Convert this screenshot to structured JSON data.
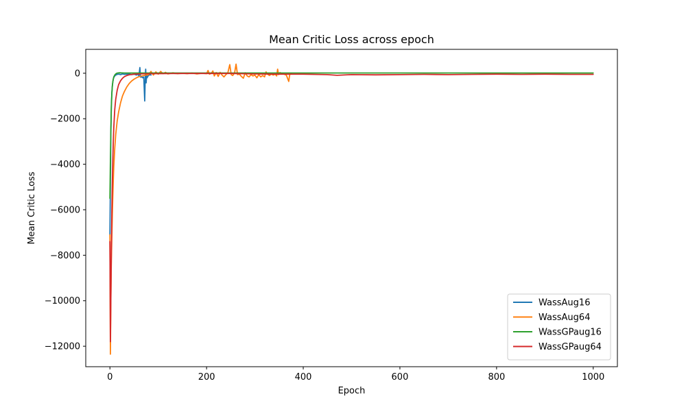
{
  "chart_data": {
    "type": "line",
    "title": "Mean Critic Loss across epoch",
    "xlabel": "Epoch",
    "ylabel": "Mean Critic Loss",
    "xlim": [
      -50,
      1050
    ],
    "ylim": [
      -12900,
      1050
    ],
    "xticks": [
      0,
      200,
      400,
      600,
      800,
      1000
    ],
    "xtick_labels": [
      "0",
      "200",
      "400",
      "600",
      "800",
      "1000"
    ],
    "yticks": [
      0,
      -2000,
      -4000,
      -6000,
      -8000,
      -10000,
      -12000
    ],
    "ytick_labels": [
      "0",
      "−2000",
      "−4000",
      "−6000",
      "−8000",
      "−10000",
      "−12000"
    ],
    "grid": false,
    "legend_position": "lower-right",
    "series": [
      {
        "name": "WassAug16",
        "color": "#1f77b4",
        "points": [
          [
            0,
            -7100
          ],
          [
            1,
            -4800
          ],
          [
            2,
            -2600
          ],
          [
            3,
            -1400
          ],
          [
            4,
            -850
          ],
          [
            5,
            -550
          ],
          [
            6,
            -380
          ],
          [
            7,
            -260
          ],
          [
            8,
            -190
          ],
          [
            10,
            -120
          ],
          [
            12,
            -80
          ],
          [
            15,
            -50
          ],
          [
            18,
            -40
          ],
          [
            22,
            -60
          ],
          [
            26,
            -30
          ],
          [
            30,
            -50
          ],
          [
            35,
            -40
          ],
          [
            40,
            -30
          ],
          [
            45,
            -60
          ],
          [
            50,
            -40
          ],
          [
            55,
            -80
          ],
          [
            58,
            -40
          ],
          [
            60,
            -120
          ],
          [
            62,
            250
          ],
          [
            63,
            -100
          ],
          [
            64,
            -180
          ],
          [
            66,
            -150
          ],
          [
            68,
            -200
          ],
          [
            70,
            -160
          ],
          [
            72,
            -1220
          ],
          [
            73,
            -300
          ],
          [
            74,
            180
          ],
          [
            75,
            -420
          ],
          [
            76,
            -60
          ],
          [
            77,
            -200
          ],
          [
            78,
            -150
          ],
          [
            80,
            -100
          ],
          [
            82,
            -60
          ],
          [
            85,
            -80
          ]
        ]
      },
      {
        "name": "WassAug64",
        "color": "#ff7f0e",
        "points": [
          [
            0,
            -7100
          ],
          [
            1,
            -12350
          ],
          [
            2,
            -9800
          ],
          [
            3,
            -8200
          ],
          [
            4,
            -7200
          ],
          [
            5,
            -6200
          ],
          [
            6,
            -5400
          ],
          [
            7,
            -4700
          ],
          [
            8,
            -4100
          ],
          [
            10,
            -3300
          ],
          [
            12,
            -2700
          ],
          [
            15,
            -2100
          ],
          [
            18,
            -1700
          ],
          [
            22,
            -1300
          ],
          [
            26,
            -1000
          ],
          [
            30,
            -800
          ],
          [
            35,
            -600
          ],
          [
            40,
            -450
          ],
          [
            45,
            -340
          ],
          [
            50,
            -260
          ],
          [
            55,
            -200
          ],
          [
            60,
            -150
          ],
          [
            70,
            -100
          ],
          [
            80,
            -60
          ],
          [
            85,
            80
          ],
          [
            90,
            -80
          ],
          [
            95,
            60
          ],
          [
            100,
            -40
          ],
          [
            105,
            80
          ],
          [
            110,
            -20
          ],
          [
            115,
            40
          ],
          [
            120,
            -30
          ],
          [
            130,
            20
          ],
          [
            140,
            -20
          ],
          [
            150,
            0
          ],
          [
            160,
            -20
          ],
          [
            170,
            10
          ],
          [
            180,
            -30
          ],
          [
            190,
            0
          ],
          [
            200,
            -20
          ],
          [
            203,
            120
          ],
          [
            206,
            -40
          ],
          [
            210,
            0
          ],
          [
            213,
            100
          ],
          [
            216,
            -120
          ],
          [
            220,
            30
          ],
          [
            224,
            -140
          ],
          [
            228,
            40
          ],
          [
            232,
            -80
          ],
          [
            236,
            -160
          ],
          [
            240,
            -60
          ],
          [
            244,
            20
          ],
          [
            248,
            380
          ],
          [
            251,
            -60
          ],
          [
            254,
            -100
          ],
          [
            258,
            20
          ],
          [
            261,
            400
          ],
          [
            264,
            -60
          ],
          [
            268,
            -40
          ],
          [
            272,
            -140
          ],
          [
            276,
            -220
          ],
          [
            280,
            20
          ],
          [
            284,
            -120
          ],
          [
            288,
            -160
          ],
          [
            292,
            -60
          ],
          [
            296,
            -120
          ],
          [
            300,
            -80
          ],
          [
            304,
            -200
          ],
          [
            308,
            -60
          ],
          [
            312,
            -160
          ],
          [
            316,
            -100
          ],
          [
            320,
            -160
          ],
          [
            323,
            60
          ],
          [
            326,
            -40
          ],
          [
            330,
            -100
          ],
          [
            334,
            -40
          ],
          [
            338,
            -80
          ],
          [
            342,
            -40
          ],
          [
            345,
            -120
          ],
          [
            347,
            180
          ],
          [
            349,
            -60
          ],
          [
            352,
            30
          ],
          [
            356,
            -20
          ],
          [
            360,
            -40
          ],
          [
            365,
            -80
          ],
          [
            370,
            -360
          ],
          [
            372,
            -60
          ],
          [
            376,
            0
          ]
        ]
      },
      {
        "name": "WassGPaug16",
        "color": "#2ca02c",
        "points": [
          [
            0,
            -5500
          ],
          [
            1,
            -3800
          ],
          [
            2,
            -2400
          ],
          [
            3,
            -1450
          ],
          [
            4,
            -900
          ],
          [
            5,
            -580
          ],
          [
            6,
            -380
          ],
          [
            7,
            -250
          ],
          [
            8,
            -160
          ],
          [
            10,
            -80
          ],
          [
            12,
            -30
          ],
          [
            14,
            0
          ],
          [
            16,
            10
          ],
          [
            20,
            20
          ],
          [
            25,
            15
          ],
          [
            30,
            10
          ],
          [
            40,
            10
          ],
          [
            60,
            10
          ],
          [
            80,
            10
          ],
          [
            100,
            10
          ],
          [
            150,
            10
          ],
          [
            200,
            10
          ],
          [
            300,
            10
          ],
          [
            400,
            10
          ],
          [
            500,
            10
          ],
          [
            600,
            10
          ],
          [
            700,
            10
          ],
          [
            800,
            10
          ],
          [
            900,
            10
          ],
          [
            1000,
            10
          ]
        ]
      },
      {
        "name": "WassGPaug64",
        "color": "#d62728",
        "points": [
          [
            0,
            -7400
          ],
          [
            1,
            -11800
          ],
          [
            2,
            -9800
          ],
          [
            3,
            -7800
          ],
          [
            4,
            -6100
          ],
          [
            5,
            -4800
          ],
          [
            6,
            -3800
          ],
          [
            7,
            -3000
          ],
          [
            8,
            -2400
          ],
          [
            10,
            -1600
          ],
          [
            12,
            -1150
          ],
          [
            15,
            -750
          ],
          [
            18,
            -500
          ],
          [
            22,
            -330
          ],
          [
            26,
            -220
          ],
          [
            30,
            -150
          ],
          [
            35,
            -100
          ],
          [
            40,
            -70
          ],
          [
            50,
            -40
          ],
          [
            60,
            -30
          ],
          [
            80,
            -20
          ],
          [
            100,
            -20
          ],
          [
            150,
            -10
          ],
          [
            200,
            -10
          ],
          [
            250,
            -10
          ],
          [
            300,
            -30
          ],
          [
            350,
            -40
          ],
          [
            400,
            -40
          ],
          [
            450,
            -60
          ],
          [
            470,
            -90
          ],
          [
            500,
            -60
          ],
          [
            550,
            -70
          ],
          [
            600,
            -60
          ],
          [
            650,
            -50
          ],
          [
            700,
            -60
          ],
          [
            750,
            -50
          ],
          [
            800,
            -40
          ],
          [
            850,
            -50
          ],
          [
            900,
            -40
          ],
          [
            950,
            -50
          ],
          [
            1000,
            -50
          ]
        ]
      }
    ]
  }
}
